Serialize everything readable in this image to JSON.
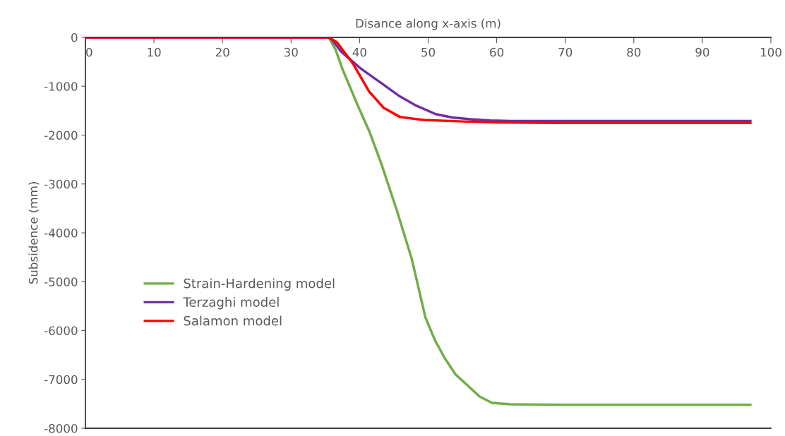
{
  "chart_data": {
    "type": "line",
    "xlabel": "Disance along x-axis (m)",
    "ylabel": "Subsidence (mm)",
    "xlim": [
      0,
      100
    ],
    "xticks": [
      0,
      10,
      20,
      30,
      40,
      50,
      60,
      70,
      80,
      90,
      100
    ],
    "ylim": [
      -8000,
      0
    ],
    "yticks": [
      -8000,
      -7000,
      -6000,
      -5000,
      -4000,
      -3000,
      -2000,
      -1000,
      0
    ],
    "grid": false,
    "legend": "left",
    "marker": "none",
    "line_style": "solid",
    "series": [
      {
        "name": "Strain-Hardening model",
        "color": "#70ad47",
        "x": [
          0,
          35.5,
          36.5,
          37.5,
          39.75,
          41.5,
          43.2,
          45.5,
          47.6,
          49.6,
          51,
          52.4,
          54,
          55.8,
          57.5,
          59.3,
          62,
          70,
          80,
          97
        ],
        "values": [
          0,
          0,
          -250,
          -650,
          -1400,
          -1950,
          -2600,
          -3570,
          -4530,
          -5730,
          -6200,
          -6560,
          -6900,
          -7130,
          -7350,
          -7480,
          -7510,
          -7520,
          -7520,
          -7520
        ]
      },
      {
        "name": "Terzaghi model",
        "color": "#7030a0",
        "x": [
          0,
          35.7,
          37.3,
          40.1,
          43.5,
          45.9,
          48.3,
          51.1,
          53.5,
          56.2,
          59,
          62,
          70,
          80,
          97
        ],
        "values": [
          0,
          0,
          -290,
          -630,
          -970,
          -1210,
          -1400,
          -1570,
          -1640,
          -1675,
          -1700,
          -1710,
          -1710,
          -1710,
          -1710
        ]
      },
      {
        "name": "Salamon model",
        "color": "#ff0000",
        "x": [
          0,
          35.5,
          36.7,
          39,
          41.4,
          43.5,
          45.9,
          49.3,
          55,
          60,
          70,
          80,
          97
        ],
        "values": [
          0,
          0,
          -100,
          -530,
          -1110,
          -1440,
          -1630,
          -1690,
          -1720,
          -1740,
          -1750,
          -1750,
          -1750
        ]
      }
    ]
  }
}
